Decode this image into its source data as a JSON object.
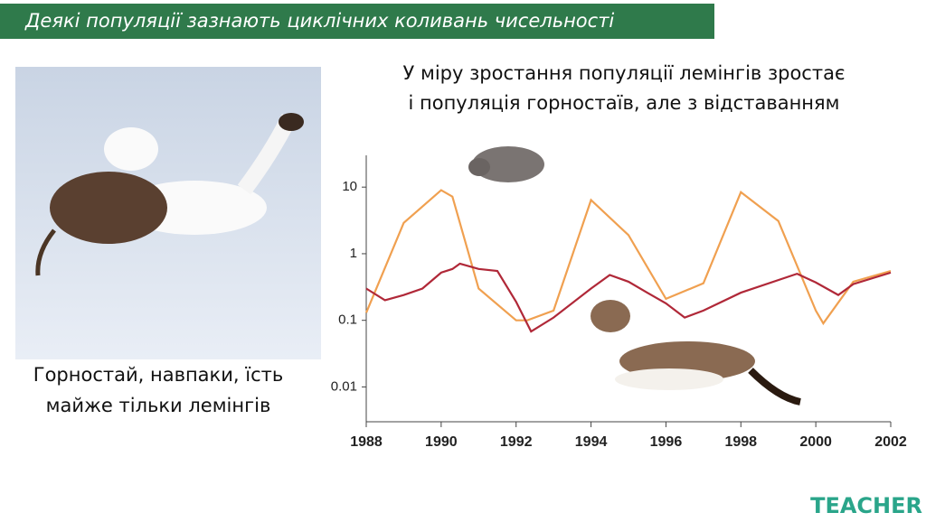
{
  "header": {
    "title": "Деякі популяції зазнають циклічних коливань чисельності"
  },
  "caption": {
    "lines": [
      "Горностай, навпаки, їсть",
      "майже тільки лемінгів"
    ]
  },
  "logo": "TEACHER",
  "chart_data": {
    "type": "line",
    "title_lines": [
      "У міру зростання популяції лемінгів зростає",
      "і популяція горностаїв, але з відставанням"
    ],
    "series": [
      {
        "color": "#f0a050",
        "x": [
          1988,
          1989,
          1990,
          1990.3,
          1991,
          1992,
          1992.3,
          1993,
          1994,
          1995,
          1996,
          1997,
          1998,
          1999,
          2000,
          2000.2,
          2001,
          2002
        ],
        "values": [
          0.13,
          2.9,
          9,
          7.2,
          0.3,
          0.1,
          0.1,
          0.14,
          6.4,
          1.9,
          0.21,
          0.36,
          8.4,
          3.1,
          0.14,
          0.09,
          0.38,
          0.55
        ]
      },
      {
        "color": "#b02838",
        "x": [
          1988,
          1988.5,
          1989,
          1989.5,
          1990,
          1990.3,
          1990.5,
          1991,
          1991.5,
          1992,
          1992.4,
          1993,
          1994,
          1994.5,
          1995,
          1995.5,
          1996,
          1996.5,
          1997,
          1998,
          1999.5,
          2000,
          2000.6,
          2001,
          2002
        ],
        "values": [
          0.3,
          0.2,
          0.24,
          0.3,
          0.52,
          0.59,
          0.71,
          0.59,
          0.55,
          0.19,
          0.068,
          0.11,
          0.3,
          0.48,
          0.38,
          0.26,
          0.18,
          0.11,
          0.14,
          0.26,
          0.5,
          0.37,
          0.24,
          0.35,
          0.52
        ]
      }
    ],
    "xlim": [
      1988,
      2002
    ],
    "xticks": [
      1988,
      1990,
      1992,
      1994,
      1996,
      1998,
      2000,
      2002
    ],
    "ylim": [
      0.003,
      30
    ],
    "yticks": [
      0.01,
      0.1,
      1,
      10
    ],
    "log_y": true
  }
}
